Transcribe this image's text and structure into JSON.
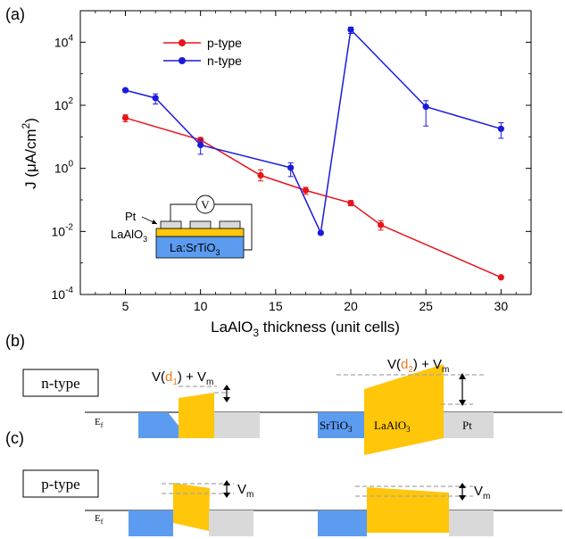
{
  "panels": {
    "a": "(a)",
    "b": "(b)",
    "c": "(c)"
  },
  "chart_data": {
    "type": "line",
    "title": "",
    "xlabel_main": "LaAlO",
    "xlabel_sub": "3",
    "xlabel_rest": " thickness (unit cells)",
    "ylabel_main": "J (μA/cm",
    "ylabel_sup": "2",
    "ylabel_end": ")",
    "x_scale": "linear",
    "y_scale": "log",
    "xlim": [
      2,
      32
    ],
    "ylim": [
      0.0001,
      100000
    ],
    "x_ticks": [
      5,
      10,
      15,
      20,
      25,
      30
    ],
    "y_ticks": [
      {
        "value": 0.0001,
        "base": "10",
        "exp": "-4"
      },
      {
        "value": 0.01,
        "base": "10",
        "exp": "-2"
      },
      {
        "value": 1,
        "base": "10",
        "exp": "0"
      },
      {
        "value": 100,
        "base": "10",
        "exp": "2"
      },
      {
        "value": 10000,
        "base": "10",
        "exp": "4"
      }
    ],
    "legend_position": "top-left",
    "series": [
      {
        "name": "p-type",
        "color": "#e8141b",
        "x": [
          5,
          10,
          14,
          17,
          20,
          22,
          30
        ],
        "y": [
          40,
          8,
          0.6,
          0.2,
          0.08,
          0.016,
          0.00035
        ],
        "err_low": [
          30,
          6.5,
          0.4,
          0.15,
          0.065,
          0.011,
          0.00035
        ],
        "err_high": [
          50,
          9.5,
          0.9,
          0.25,
          0.095,
          0.022,
          0.00035
        ]
      },
      {
        "name": "n-type",
        "color": "#1a1adc",
        "x": [
          5,
          7,
          10,
          16,
          18,
          20,
          25,
          30
        ],
        "y": [
          300,
          170,
          5.5,
          1.05,
          0.009,
          25000,
          90,
          18
        ],
        "err_low": [
          260,
          110,
          2.8,
          0.55,
          0.008,
          19000,
          22,
          9
        ],
        "err_high": [
          340,
          230,
          8,
          1.5,
          0.01,
          30000,
          140,
          28
        ]
      }
    ]
  },
  "inset": {
    "pt_label": "Pt",
    "lao_main": "LaAlO",
    "lao_sub": "3",
    "sto_main": "La:SrTiO",
    "sto_sub": "3",
    "meter_symbol": "V"
  },
  "band_diagrams": {
    "n_type_label": "n-type",
    "p_type_label": "p-type",
    "ef_main": "E",
    "ef_sub": "f",
    "v_prefix": "V(",
    "d1": "d",
    "d1_sub": "1",
    "d2": "d",
    "d2_sub": "2",
    "v_suffix": ") + V",
    "vm_main": "V",
    "vm_sub": "m",
    "sto_main": "SrTiO",
    "sto_sub": "3",
    "lao_main": "LaAlO",
    "lao_sub": "3",
    "pt": "Pt",
    "colors": {
      "substrate": "#5b9bf0",
      "barrier": "#ffc60a",
      "metal": "#d9d9d9",
      "d_label": "#f07b1e",
      "dashed": "#a6a6a6"
    }
  }
}
